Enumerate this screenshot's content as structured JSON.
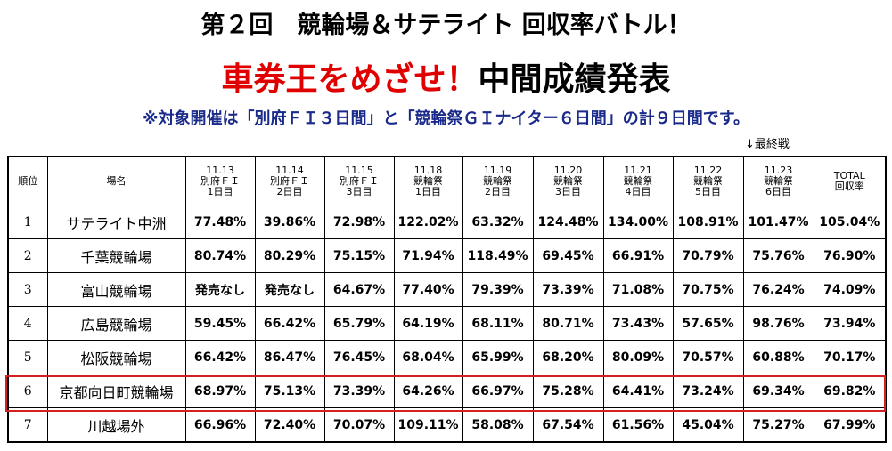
{
  "header": {
    "title": "第２回　競輪場＆サテライト 回収率バトル！",
    "title_red": "車券王をめざせ！",
    "title_black": "中間成績発表",
    "note": "※対象開催は「別府ＦＩ３日間」と「競輪祭ＧＩナイター６日間」の計９日間です。",
    "final_marker": "↓最終戦"
  },
  "table": {
    "columns": [
      [
        "順位"
      ],
      [
        "場名"
      ],
      [
        "11.13",
        "別府ＦＩ",
        "1日目"
      ],
      [
        "11.14",
        "別府ＦＩ",
        "2日目"
      ],
      [
        "11.15",
        "別府ＦＩ",
        "3日目"
      ],
      [
        "11.18",
        "競輪祭",
        "1日目"
      ],
      [
        "11.19",
        "競輪祭",
        "2日目"
      ],
      [
        "11.20",
        "競輪祭",
        "3日目"
      ],
      [
        "11.21",
        "競輪祭",
        "4日目"
      ],
      [
        "11.22",
        "競輪祭",
        "5日目"
      ],
      [
        "11.23",
        "競輪祭",
        "6日目"
      ],
      [
        "TOTAL",
        "回収率"
      ]
    ],
    "rows": [
      [
        "1",
        "サテライト中洲",
        "77.48%",
        "39.86%",
        "72.98%",
        "122.02%",
        "63.32%",
        "124.48%",
        "134.00%",
        "108.91%",
        "101.47%",
        "105.04%"
      ],
      [
        "2",
        "千葉競輪場",
        "80.74%",
        "80.29%",
        "75.15%",
        "71.94%",
        "118.49%",
        "69.45%",
        "66.91%",
        "70.79%",
        "75.76%",
        "76.90%"
      ],
      [
        "3",
        "富山競輪場",
        "発売なし",
        "発売なし",
        "64.67%",
        "77.40%",
        "79.39%",
        "73.39%",
        "71.08%",
        "70.75%",
        "76.24%",
        "74.09%"
      ],
      [
        "4",
        "広島競輪場",
        "59.45%",
        "66.42%",
        "65.79%",
        "64.19%",
        "68.11%",
        "80.71%",
        "73.43%",
        "57.65%",
        "98.76%",
        "73.94%"
      ],
      [
        "5",
        "松阪競輪場",
        "66.42%",
        "86.47%",
        "76.45%",
        "68.04%",
        "65.99%",
        "68.20%",
        "80.09%",
        "70.57%",
        "60.88%",
        "70.17%"
      ],
      [
        "6",
        "京都向日町競輪場",
        "68.97%",
        "75.13%",
        "73.39%",
        "64.26%",
        "66.97%",
        "75.28%",
        "64.41%",
        "73.24%",
        "69.34%",
        "69.82%"
      ],
      [
        "7",
        "川越場外",
        "66.96%",
        "72.40%",
        "70.07%",
        "109.11%",
        "58.08%",
        "67.54%",
        "61.56%",
        "45.04%",
        "75.27%",
        "67.99%"
      ]
    ]
  }
}
